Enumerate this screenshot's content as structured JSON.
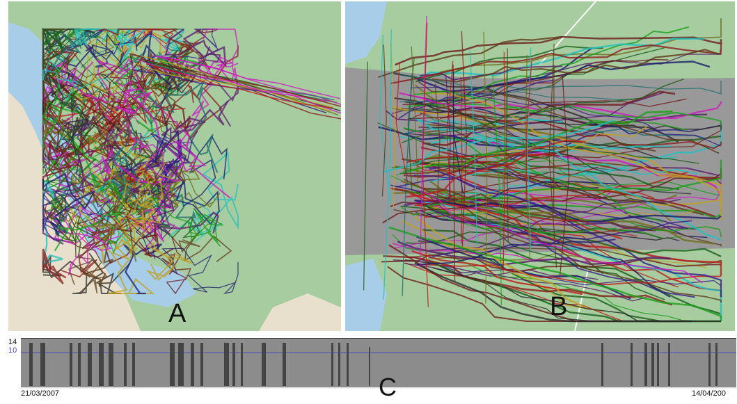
{
  "panels": {
    "a": {
      "label": "A"
    },
    "b": {
      "label": "B"
    },
    "c": {
      "label": "C"
    }
  },
  "timeline": {
    "y_max_label": "14",
    "y_ref_label": "10",
    "start_date": "21/03/2007",
    "end_date": "14/04/200"
  },
  "colors": {
    "land": "#a6cca0",
    "water": "#a7cde8",
    "sand": "#e8e0cc",
    "overlay_gray": "#999999",
    "timeline_bg": "#8c8c8c",
    "timeline_bar": "#444444",
    "ref_line": "#4a4ac8"
  }
}
